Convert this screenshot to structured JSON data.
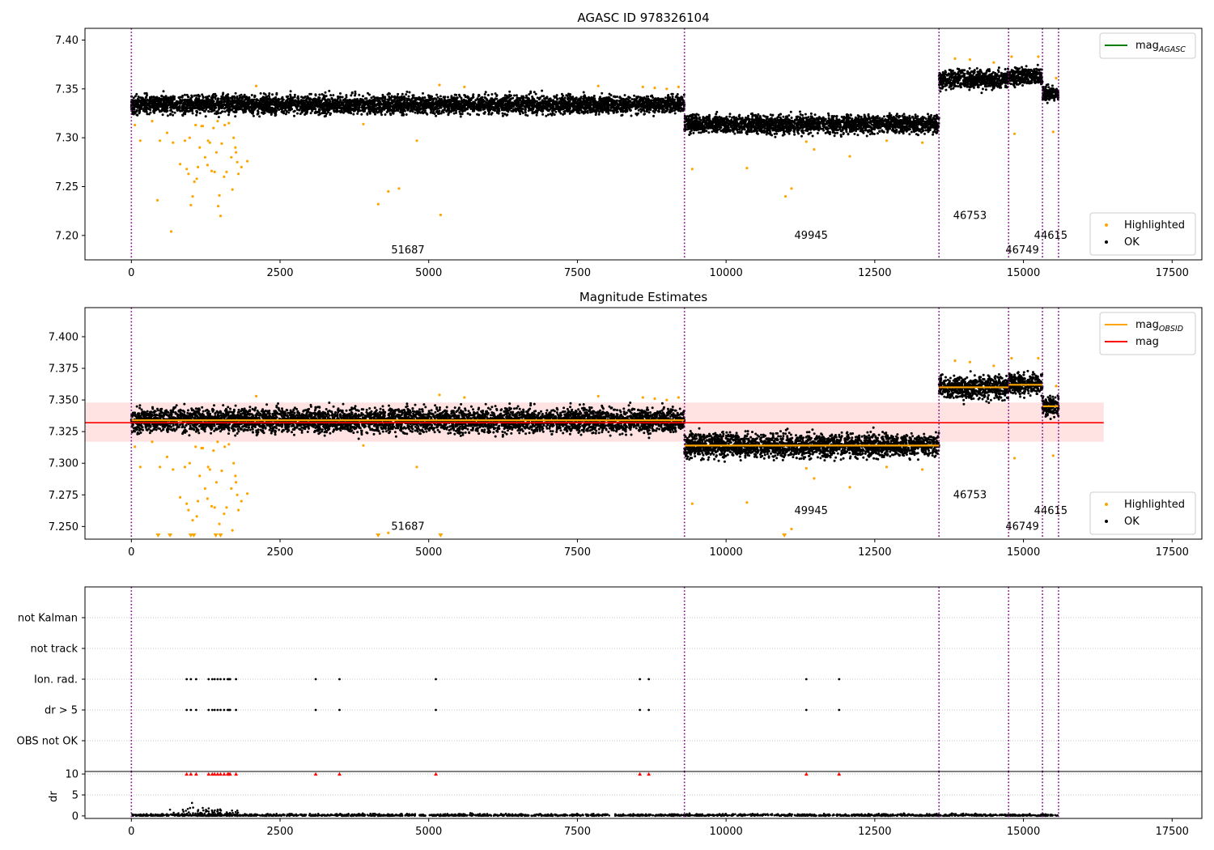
{
  "chart_data": [
    {
      "type": "scatter",
      "title": "AGASC ID 978326104",
      "xlim": [
        -780,
        18000
      ],
      "ylim": [
        7.175,
        7.412
      ],
      "x_ticks": [
        0,
        2500,
        5000,
        7500,
        10000,
        12500,
        15000,
        17500
      ],
      "y_ticks": [
        7.2,
        7.25,
        7.3,
        7.35,
        7.4
      ],
      "y_tick_labels": [
        "7.20",
        "7.25",
        "7.30",
        "7.35",
        "7.40"
      ],
      "legend_upper": [
        {
          "label": "mag",
          "sub": "AGASC",
          "color": "#008000",
          "marker": "line"
        }
      ],
      "legend_lower": [
        {
          "label": "Highlighted",
          "color": "#ffa500",
          "marker": "dot"
        },
        {
          "label": "OK",
          "color": "#000000",
          "marker": "dot"
        }
      ],
      "obsid_boundaries": [
        0,
        9300,
        13580,
        14750,
        15320,
        15590
      ],
      "obsid_labels": [
        {
          "text": "51687",
          "x": 4650,
          "y": 7.185
        },
        {
          "text": "49945",
          "x": 11430,
          "y": 7.2
        },
        {
          "text": "46753",
          "x": 14100,
          "y": 7.22
        },
        {
          "text": "46749",
          "x": 14980,
          "y": 7.185
        },
        {
          "text": "44615",
          "x": 15460,
          "y": 7.2
        }
      ],
      "series": [
        {
          "name": "OK",
          "segments": [
            {
              "x": [
                0,
                9300
              ],
              "center": 7.334,
              "spread": 0.011
            },
            {
              "x": [
                9300,
                13580
              ],
              "center": 7.314,
              "spread": 0.011
            },
            {
              "x": [
                13580,
                14750
              ],
              "center": 7.36,
              "spread": 0.011
            },
            {
              "x": [
                14750,
                15320
              ],
              "center": 7.363,
              "spread": 0.01
            },
            {
              "x": [
                15320,
                15590
              ],
              "center": 7.345,
              "spread": 0.009
            }
          ]
        },
        {
          "name": "Highlighted",
          "points": [
            [
              60,
              7.313
            ],
            [
              150,
              7.297
            ],
            [
              350,
              7.317
            ],
            [
              480,
              7.297
            ],
            [
              600,
              7.305
            ],
            [
              670,
              7.204
            ],
            [
              700,
              7.295
            ],
            [
              820,
              7.273
            ],
            [
              900,
              7.297
            ],
            [
              930,
              7.268
            ],
            [
              960,
              7.263
            ],
            [
              1000,
              7.231
            ],
            [
              1030,
              7.24
            ],
            [
              1060,
              7.255
            ],
            [
              1100,
              7.258
            ],
            [
              1120,
              7.27
            ],
            [
              1150,
              7.29
            ],
            [
              1200,
              7.312
            ],
            [
              1240,
              7.28
            ],
            [
              1280,
              7.272
            ],
            [
              1320,
              7.295
            ],
            [
              1350,
              7.266
            ],
            [
              1380,
              7.31
            ],
            [
              1400,
              7.265
            ],
            [
              1430,
              7.285
            ],
            [
              1460,
              7.23
            ],
            [
              1480,
              7.241
            ],
            [
              1500,
              7.22
            ],
            [
              1520,
              7.294
            ],
            [
              1560,
              7.26
            ],
            [
              1600,
              7.265
            ],
            [
              1640,
              7.315
            ],
            [
              1680,
              7.28
            ],
            [
              1700,
              7.247
            ],
            [
              1720,
              7.3
            ],
            [
              1750,
              7.29
            ],
            [
              1780,
              7.275
            ],
            [
              1800,
              7.263
            ],
            [
              1850,
              7.27
            ],
            [
              1950,
              7.276
            ],
            [
              440,
              7.236
            ],
            [
              980,
              7.3
            ],
            [
              1080,
              7.313
            ],
            [
              1180,
              7.312
            ],
            [
              1290,
              7.297
            ],
            [
              1450,
              7.317
            ],
            [
              1570,
              7.313
            ],
            [
              1760,
              7.285
            ],
            [
              2100,
              7.353
            ],
            [
              3900,
              7.314
            ],
            [
              4150,
              7.232
            ],
            [
              4320,
              7.245
            ],
            [
              4500,
              7.248
            ],
            [
              4800,
              7.297
            ],
            [
              5200,
              7.221
            ],
            [
              5180,
              7.354
            ],
            [
              5600,
              7.352
            ],
            [
              7850,
              7.353
            ],
            [
              8600,
              7.352
            ],
            [
              8800,
              7.351
            ],
            [
              9000,
              7.35
            ],
            [
              9200,
              7.352
            ],
            [
              9430,
              7.268
            ],
            [
              10350,
              7.269
            ],
            [
              11000,
              7.24
            ],
            [
              11100,
              7.248
            ],
            [
              11350,
              7.296
            ],
            [
              11480,
              7.288
            ],
            [
              12080,
              7.281
            ],
            [
              12700,
              7.297
            ],
            [
              13300,
              7.295
            ],
            [
              13850,
              7.381
            ],
            [
              14100,
              7.38
            ],
            [
              14500,
              7.377
            ],
            [
              14850,
              7.304
            ],
            [
              14800,
              7.383
            ],
            [
              15250,
              7.383
            ],
            [
              15500,
              7.306
            ],
            [
              15550,
              7.361
            ]
          ]
        }
      ]
    },
    {
      "type": "scatter",
      "title": "Magnitude Estimates",
      "xlim": [
        -780,
        18000
      ],
      "ylim": [
        7.24,
        7.423
      ],
      "x_ticks": [
        0,
        2500,
        5000,
        7500,
        10000,
        12500,
        15000,
        17500
      ],
      "y_ticks": [
        7.25,
        7.275,
        7.3,
        7.325,
        7.35,
        7.375,
        7.4
      ],
      "y_tick_labels": [
        "7.250",
        "7.275",
        "7.300",
        "7.325",
        "7.350",
        "7.375",
        "7.400"
      ],
      "legend_upper": [
        {
          "label": "mag",
          "sub": "OBSID",
          "color": "#ffa500",
          "marker": "line"
        },
        {
          "label": "mag",
          "sub": "",
          "color": "#ff0000",
          "marker": "line"
        }
      ],
      "legend_lower": [
        {
          "label": "Highlighted",
          "color": "#ffa500",
          "marker": "dot"
        },
        {
          "label": "OK",
          "color": "#000000",
          "marker": "dot"
        }
      ],
      "overall_mag": 7.332,
      "overall_band": [
        7.317,
        7.348
      ],
      "band_x": [
        -780,
        16350
      ],
      "obsid_mags": [
        {
          "x": [
            0,
            9300
          ],
          "mag": 7.334
        },
        {
          "x": [
            9300,
            13580
          ],
          "mag": 7.314
        },
        {
          "x": [
            13580,
            14750
          ],
          "mag": 7.36
        },
        {
          "x": [
            14750,
            15320
          ],
          "mag": 7.362
        },
        {
          "x": [
            15320,
            15590
          ],
          "mag": 7.345
        }
      ],
      "obsid_boundaries": [
        0,
        9300,
        13580,
        14750,
        15320,
        15590
      ],
      "obsid_labels": [
        {
          "text": "51687",
          "x": 4650,
          "y": 7.25
        },
        {
          "text": "49945",
          "x": 11430,
          "y": 7.2625
        },
        {
          "text": "46753",
          "x": 14100,
          "y": 7.275
        },
        {
          "text": "46749",
          "x": 14980,
          "y": 7.25
        },
        {
          "text": "44615",
          "x": 15460,
          "y": 7.2625
        }
      ],
      "down_markers": [
        450,
        650,
        1000,
        1050,
        1420,
        1500,
        4150,
        5200,
        10980
      ],
      "series": [
        {
          "name": "OK",
          "segments": [
            {
              "x": [
                0,
                9300
              ],
              "center": 7.334,
              "spread": 0.011
            },
            {
              "x": [
                9300,
                13580
              ],
              "center": 7.314,
              "spread": 0.011
            },
            {
              "x": [
                13580,
                14750
              ],
              "center": 7.36,
              "spread": 0.011
            },
            {
              "x": [
                14750,
                15320
              ],
              "center": 7.363,
              "spread": 0.01
            },
            {
              "x": [
                15320,
                15590
              ],
              "center": 7.345,
              "spread": 0.009
            }
          ]
        },
        {
          "name": "Highlighted",
          "points": [
            [
              60,
              7.313
            ],
            [
              150,
              7.297
            ],
            [
              350,
              7.317
            ],
            [
              480,
              7.297
            ],
            [
              600,
              7.305
            ],
            [
              700,
              7.295
            ],
            [
              820,
              7.273
            ],
            [
              900,
              7.297
            ],
            [
              930,
              7.268
            ],
            [
              960,
              7.263
            ],
            [
              1030,
              7.255
            ],
            [
              1100,
              7.258
            ],
            [
              1120,
              7.27
            ],
            [
              1150,
              7.29
            ],
            [
              1200,
              7.312
            ],
            [
              1240,
              7.28
            ],
            [
              1280,
              7.272
            ],
            [
              1320,
              7.295
            ],
            [
              1350,
              7.266
            ],
            [
              1380,
              7.31
            ],
            [
              1400,
              7.265
            ],
            [
              1430,
              7.285
            ],
            [
              1480,
              7.252
            ],
            [
              1520,
              7.294
            ],
            [
              1560,
              7.26
            ],
            [
              1600,
              7.265
            ],
            [
              1640,
              7.315
            ],
            [
              1680,
              7.28
            ],
            [
              1700,
              7.247
            ],
            [
              1720,
              7.3
            ],
            [
              1750,
              7.29
            ],
            [
              1780,
              7.275
            ],
            [
              1800,
              7.263
            ],
            [
              1850,
              7.27
            ],
            [
              1950,
              7.276
            ],
            [
              980,
              7.3
            ],
            [
              1080,
              7.313
            ],
            [
              1180,
              7.312
            ],
            [
              1290,
              7.297
            ],
            [
              1450,
              7.317
            ],
            [
              1570,
              7.313
            ],
            [
              1760,
              7.285
            ],
            [
              2100,
              7.353
            ],
            [
              3900,
              7.314
            ],
            [
              4320,
              7.245
            ],
            [
              4800,
              7.297
            ],
            [
              5180,
              7.354
            ],
            [
              5600,
              7.352
            ],
            [
              7850,
              7.353
            ],
            [
              8600,
              7.352
            ],
            [
              8800,
              7.351
            ],
            [
              9000,
              7.35
            ],
            [
              9200,
              7.352
            ],
            [
              9430,
              7.268
            ],
            [
              10350,
              7.269
            ],
            [
              11100,
              7.248
            ],
            [
              11350,
              7.296
            ],
            [
              11480,
              7.288
            ],
            [
              12080,
              7.281
            ],
            [
              12700,
              7.297
            ],
            [
              13300,
              7.295
            ],
            [
              13850,
              7.381
            ],
            [
              14100,
              7.38
            ],
            [
              14500,
              7.377
            ],
            [
              14850,
              7.304
            ],
            [
              14800,
              7.383
            ],
            [
              15250,
              7.383
            ],
            [
              15500,
              7.306
            ],
            [
              15550,
              7.361
            ]
          ]
        }
      ]
    },
    {
      "type": "scatter",
      "title": "",
      "xlim": [
        -780,
        18000
      ],
      "y_categories": [
        "not Kalman",
        "not track",
        "Ion. rad.",
        "dr > 5",
        "OBS not OK"
      ],
      "flag_points": {
        "Ion. rad.": [
          930,
          1000,
          1090,
          1300,
          1360,
          1400,
          1450,
          1500,
          1560,
          1620,
          1640,
          1660,
          1760,
          3100,
          3500,
          5120,
          8550,
          8700,
          11350,
          11900
        ],
        "dr > 5": [
          930,
          1000,
          1090,
          1300,
          1360,
          1400,
          1450,
          1500,
          1560,
          1620,
          1640,
          1660,
          1760,
          3100,
          3500,
          5120,
          8550,
          8700,
          11350,
          11900
        ]
      },
      "obsid_boundaries": [
        0,
        9300,
        13580,
        14750,
        15320,
        15590
      ]
    },
    {
      "type": "scatter",
      "title": "",
      "ylabel": "dr",
      "xlim": [
        -780,
        18000
      ],
      "ylim": [
        -0.6,
        10.6
      ],
      "x_ticks": [
        0,
        2500,
        5000,
        7500,
        10000,
        12500,
        15000,
        17500
      ],
      "y_ticks": [
        0,
        5,
        10
      ],
      "y_tick_labels": [
        "0",
        "5",
        "10"
      ],
      "clipped_marks": [
        930,
        1000,
        1090,
        1300,
        1360,
        1400,
        1450,
        1500,
        1560,
        1620,
        1640,
        1660,
        1760,
        3100,
        3500,
        5120,
        8550,
        8700,
        11350,
        11900
      ],
      "outliers": [
        [
          1020,
          3.1
        ],
        [
          650,
          1.5
        ],
        [
          1300,
          1.8
        ],
        [
          1450,
          1.5
        ]
      ],
      "obsid_boundaries": [
        0,
        9300,
        13580,
        14750,
        15320,
        15590
      ]
    }
  ]
}
